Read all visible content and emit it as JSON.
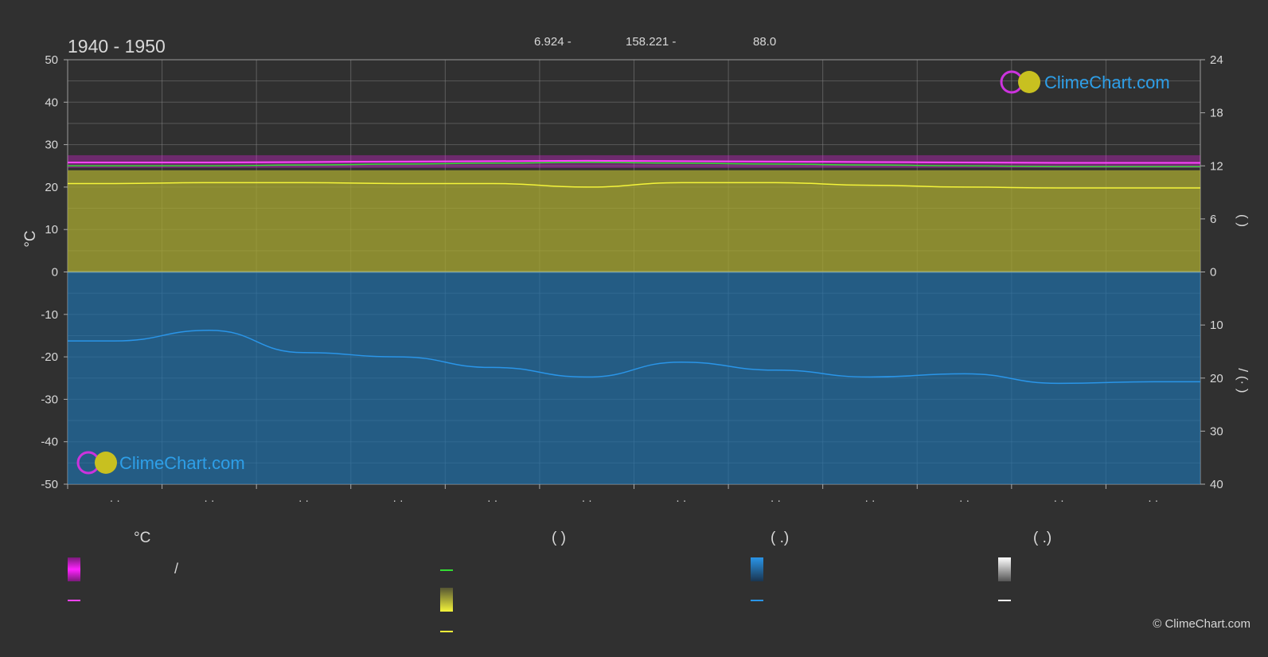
{
  "header": {
    "period": "1940 - 1950",
    "coord_lat": "6.924 -",
    "coord_lon": "158.221 -",
    "elevation": "88.0"
  },
  "axes": {
    "left_unit": "°C",
    "left_ticks": [
      "50",
      "40",
      "30",
      "20",
      "10",
      "0",
      "-10",
      "-20",
      "-30",
      "-40",
      "-50"
    ],
    "right_top_ticks": [
      "24",
      "18",
      "12",
      "6",
      "0"
    ],
    "right_bottom_ticks": [
      "10",
      "20",
      "30",
      "40"
    ],
    "right_top_label": "(   )",
    "right_bottom_label": "/   (·  )",
    "x_tick_labels": [
      "· ·",
      "· ·",
      "· ·",
      "· ·",
      "· ·",
      "· ·",
      "· ·",
      "· ·",
      "· ·",
      "· ·",
      "· ·",
      "· ·"
    ]
  },
  "brand": {
    "name": "ClimeChart.com",
    "copyright": "© ClimeChart.com"
  },
  "legend": {
    "col1_head": "°C",
    "col1_row1_text": "/",
    "col2_head": "(          )",
    "col3_head": "(   .)",
    "col4_head": "(   .)"
  },
  "colors": {
    "background": "#303030",
    "temp_band": "#e020e0",
    "temp_line": "#ff44ff",
    "sunshine_band": "#a8a830",
    "sunshine_line": "#f4f43a",
    "daylight_line": "#33dd33",
    "precip_band": "#1f6fa8",
    "precip_line": "#2a95e8",
    "brand_text": "#2e9fe8"
  },
  "chart_data": {
    "type": "line",
    "x": [
      "M1",
      "M2",
      "M3",
      "M4",
      "M5",
      "M6",
      "M7",
      "M8",
      "M9",
      "M10",
      "M11",
      "M12"
    ],
    "ylim": [
      -50,
      50
    ],
    "y2_top_lim": [
      0,
      24
    ],
    "y2_bottom_lim": [
      0,
      40
    ],
    "series": [
      {
        "values": [
          25.8,
          25.8,
          25.9,
          26.0,
          26.1,
          26.2,
          26.1,
          26.0,
          25.9,
          25.8,
          25.7,
          25.7
        ]
      },
      {
        "values": [
          12.0,
          12.0,
          12.1,
          12.2,
          12.3,
          12.4,
          12.3,
          12.2,
          12.1,
          12.0,
          11.9,
          11.9
        ]
      },
      {
        "values": [
          10.0,
          10.1,
          10.1,
          10.0,
          10.0,
          9.6,
          10.1,
          10.1,
          9.8,
          9.6,
          9.5,
          9.5
        ]
      },
      {
        "values": [
          13.0,
          11.0,
          15.2,
          16.0,
          18.0,
          19.8,
          17.0,
          18.5,
          19.8,
          19.2,
          21.0,
          20.7
        ]
      }
    ]
  }
}
